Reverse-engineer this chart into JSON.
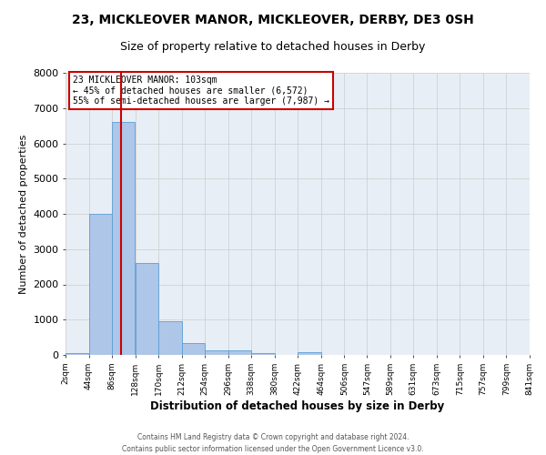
{
  "title": "23, MICKLEOVER MANOR, MICKLEOVER, DERBY, DE3 0SH",
  "subtitle": "Size of property relative to detached houses in Derby",
  "xlabel": "Distribution of detached houses by size in Derby",
  "ylabel": "Number of detached properties",
  "bin_edges": [
    2,
    44,
    86,
    128,
    170,
    212,
    254,
    296,
    338,
    380,
    422,
    464,
    506,
    547,
    589,
    631,
    673,
    715,
    757,
    799,
    841
  ],
  "bar_heights": [
    50,
    4000,
    6600,
    2600,
    950,
    325,
    130,
    130,
    50,
    0,
    80,
    0,
    0,
    0,
    0,
    0,
    0,
    0,
    0,
    0
  ],
  "bar_color": "#aec6e8",
  "bar_edge_color": "#5a9fd4",
  "property_size": 103,
  "red_line_color": "#cc0000",
  "ylim": [
    0,
    8000
  ],
  "annotation_text": "23 MICKLEOVER MANOR: 103sqm\n← 45% of detached houses are smaller (6,572)\n55% of semi-detached houses are larger (7,987) →",
  "annotation_box_edge": "#cc0000",
  "footer_line1": "Contains HM Land Registry data © Crown copyright and database right 2024.",
  "footer_line2": "Contains public sector information licensed under the Open Government Licence v3.0.",
  "bg_color": "#e8eef5",
  "title_fontsize": 10,
  "subtitle_fontsize": 9,
  "yticks": [
    0,
    1000,
    2000,
    3000,
    4000,
    5000,
    6000,
    7000,
    8000
  ]
}
